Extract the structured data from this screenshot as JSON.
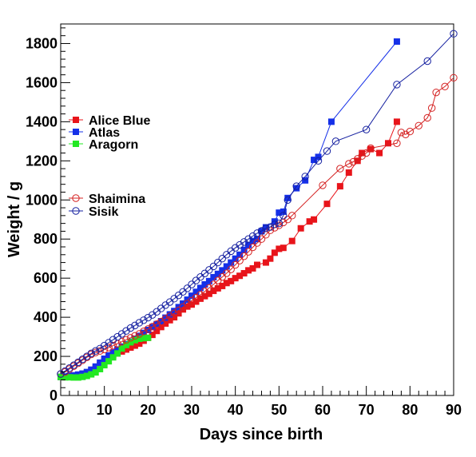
{
  "chart_data": {
    "type": "scatter",
    "title": "",
    "xlabel": "Days since birth",
    "ylabel": "Weight / g",
    "xlim": [
      0,
      90
    ],
    "ylim": [
      0,
      1900
    ],
    "x_ticks": [
      0,
      10,
      20,
      30,
      40,
      50,
      60,
      70,
      80,
      90
    ],
    "y_ticks": [
      0,
      200,
      400,
      600,
      800,
      1000,
      1200,
      1400,
      1600,
      1800
    ],
    "x_tick_labels": [
      "0",
      "10",
      "20",
      "30",
      "40",
      "50",
      "60",
      "70",
      "80",
      "90"
    ],
    "y_tick_labels": [
      "0",
      "200",
      "400",
      "600",
      "800",
      "1000",
      "1200",
      "1400",
      "1600",
      "1800"
    ],
    "grid": false,
    "legend_position": "left",
    "series": [
      {
        "name": "Alice Blue",
        "color": "#e8141a",
        "marker": "filled-square",
        "connected": true,
        "points": [
          [
            0,
            95
          ],
          [
            1,
            95
          ],
          [
            2,
            97
          ],
          [
            3,
            100
          ],
          [
            4,
            104
          ],
          [
            5,
            108
          ],
          [
            6,
            115
          ],
          [
            7,
            125
          ],
          [
            8,
            140
          ],
          [
            9,
            158
          ],
          [
            10,
            178
          ],
          [
            11,
            195
          ],
          [
            12,
            205
          ],
          [
            13,
            215
          ],
          [
            14,
            225
          ],
          [
            15,
            235
          ],
          [
            16,
            245
          ],
          [
            17,
            255
          ],
          [
            18,
            265
          ],
          [
            19,
            280
          ],
          [
            20,
            295
          ],
          [
            21,
            310
          ],
          [
            22,
            330
          ],
          [
            23,
            350
          ],
          [
            24,
            368
          ],
          [
            25,
            385
          ],
          [
            26,
            400
          ],
          [
            27,
            420
          ],
          [
            28,
            440
          ],
          [
            29,
            455
          ],
          [
            30,
            465
          ],
          [
            31,
            480
          ],
          [
            32,
            495
          ],
          [
            33,
            508
          ],
          [
            34,
            520
          ],
          [
            35,
            535
          ],
          [
            36,
            548
          ],
          [
            37,
            560
          ],
          [
            38,
            575
          ],
          [
            39,
            585
          ],
          [
            40,
            600
          ],
          [
            41,
            612
          ],
          [
            42,
            625
          ],
          [
            43,
            640
          ],
          [
            44,
            650
          ],
          [
            45,
            668
          ],
          [
            47,
            680
          ],
          [
            48,
            700
          ],
          [
            49,
            730
          ],
          [
            50,
            750
          ],
          [
            51,
            755
          ],
          [
            53,
            790
          ],
          [
            55,
            855
          ],
          [
            57,
            890
          ],
          [
            58,
            900
          ],
          [
            61,
            980
          ],
          [
            64,
            1070
          ],
          [
            66,
            1140
          ],
          [
            68,
            1200
          ],
          [
            69,
            1240
          ],
          [
            71,
            1260
          ],
          [
            73,
            1240
          ],
          [
            75,
            1290
          ],
          [
            77,
            1400
          ]
        ]
      },
      {
        "name": "Atlas",
        "color": "#1530e8",
        "marker": "filled-square",
        "connected": true,
        "points": [
          [
            0,
            95
          ],
          [
            1,
            97
          ],
          [
            2,
            100
          ],
          [
            3,
            103
          ],
          [
            4,
            107
          ],
          [
            5,
            112
          ],
          [
            6,
            120
          ],
          [
            7,
            132
          ],
          [
            8,
            148
          ],
          [
            9,
            168
          ],
          [
            10,
            188
          ],
          [
            11,
            205
          ],
          [
            12,
            220
          ],
          [
            13,
            235
          ],
          [
            14,
            250
          ],
          [
            15,
            262
          ],
          [
            16,
            275
          ],
          [
            17,
            290
          ],
          [
            18,
            305
          ],
          [
            19,
            320
          ],
          [
            20,
            335
          ],
          [
            21,
            350
          ],
          [
            22,
            365
          ],
          [
            23,
            380
          ],
          [
            24,
            398
          ],
          [
            25,
            415
          ],
          [
            26,
            432
          ],
          [
            27,
            452
          ],
          [
            28,
            470
          ],
          [
            29,
            490
          ],
          [
            30,
            510
          ],
          [
            31,
            530
          ],
          [
            32,
            550
          ],
          [
            33,
            568
          ],
          [
            34,
            585
          ],
          [
            35,
            605
          ],
          [
            36,
            622
          ],
          [
            37,
            640
          ],
          [
            38,
            660
          ],
          [
            39,
            680
          ],
          [
            40,
            700
          ],
          [
            41,
            720
          ],
          [
            42,
            745
          ],
          [
            43,
            770
          ],
          [
            44,
            790
          ],
          [
            45,
            800
          ],
          [
            46,
            840
          ],
          [
            47,
            860
          ],
          [
            49,
            890
          ],
          [
            50,
            935
          ],
          [
            51,
            940
          ],
          [
            52,
            1010
          ],
          [
            54,
            1060
          ],
          [
            56,
            1100
          ],
          [
            58,
            1205
          ],
          [
            59,
            1220
          ],
          [
            62,
            1400
          ],
          [
            77,
            1810
          ]
        ]
      },
      {
        "name": "Aragorn",
        "color": "#22e822",
        "marker": "filled-square",
        "connected": true,
        "points": [
          [
            0,
            95
          ],
          [
            1,
            93
          ],
          [
            2,
            93
          ],
          [
            3,
            92
          ],
          [
            4,
            92
          ],
          [
            5,
            95
          ],
          [
            6,
            100
          ],
          [
            7,
            108
          ],
          [
            8,
            118
          ],
          [
            9,
            135
          ],
          [
            10,
            155
          ],
          [
            11,
            175
          ],
          [
            12,
            195
          ],
          [
            13,
            215
          ],
          [
            14,
            240
          ],
          [
            15,
            258
          ],
          [
            16,
            272
          ],
          [
            17,
            283
          ],
          [
            18,
            290
          ],
          [
            19,
            293
          ],
          [
            20,
            295
          ]
        ]
      },
      {
        "name": "Shaimina",
        "color": "#d42020",
        "marker": "open-circle",
        "connected": true,
        "points": [
          [
            0,
            110
          ],
          [
            1,
            120
          ],
          [
            2,
            135
          ],
          [
            3,
            150
          ],
          [
            4,
            165
          ],
          [
            5,
            180
          ],
          [
            6,
            195
          ],
          [
            7,
            210
          ],
          [
            8,
            220
          ],
          [
            9,
            228
          ],
          [
            10,
            235
          ],
          [
            11,
            245
          ],
          [
            12,
            255
          ],
          [
            13,
            265
          ],
          [
            14,
            275
          ],
          [
            15,
            285
          ],
          [
            16,
            295
          ],
          [
            17,
            305
          ],
          [
            18,
            315
          ],
          [
            19,
            328
          ],
          [
            20,
            340
          ],
          [
            21,
            352
          ],
          [
            22,
            365
          ],
          [
            23,
            378
          ],
          [
            24,
            392
          ],
          [
            25,
            405
          ],
          [
            26,
            420
          ],
          [
            27,
            435
          ],
          [
            28,
            452
          ],
          [
            29,
            470
          ],
          [
            30,
            485
          ],
          [
            31,
            500
          ],
          [
            32,
            515
          ],
          [
            33,
            532
          ],
          [
            34,
            550
          ],
          [
            35,
            568
          ],
          [
            36,
            588
          ],
          [
            37,
            606
          ],
          [
            38,
            625
          ],
          [
            39,
            645
          ],
          [
            40,
            668
          ],
          [
            41,
            690
          ],
          [
            42,
            712
          ],
          [
            43,
            735
          ],
          [
            44,
            758
          ],
          [
            45,
            780
          ],
          [
            46,
            800
          ],
          [
            47,
            822
          ],
          [
            48,
            845
          ],
          [
            49,
            858
          ],
          [
            50,
            870
          ],
          [
            51,
            885
          ],
          [
            52,
            900
          ],
          [
            53,
            920
          ],
          [
            60,
            1075
          ],
          [
            64,
            1160
          ],
          [
            66,
            1185
          ],
          [
            67,
            1195
          ],
          [
            68,
            1210
          ],
          [
            69,
            1225
          ],
          [
            70,
            1240
          ],
          [
            71,
            1265
          ],
          [
            77,
            1290
          ],
          [
            78,
            1345
          ],
          [
            79,
            1335
          ],
          [
            80,
            1350
          ],
          [
            82,
            1380
          ],
          [
            84,
            1420
          ],
          [
            85,
            1470
          ],
          [
            86,
            1550
          ],
          [
            88,
            1580
          ],
          [
            90,
            1625
          ]
        ]
      },
      {
        "name": "Sisik",
        "color": "#1520a0",
        "marker": "open-circle",
        "connected": true,
        "points": [
          [
            0,
            110
          ],
          [
            1,
            125
          ],
          [
            2,
            140
          ],
          [
            3,
            155
          ],
          [
            4,
            170
          ],
          [
            5,
            185
          ],
          [
            6,
            200
          ],
          [
            7,
            215
          ],
          [
            8,
            228
          ],
          [
            9,
            240
          ],
          [
            10,
            255
          ],
          [
            11,
            270
          ],
          [
            12,
            285
          ],
          [
            13,
            300
          ],
          [
            14,
            315
          ],
          [
            15,
            330
          ],
          [
            16,
            345
          ],
          [
            17,
            358
          ],
          [
            18,
            372
          ],
          [
            19,
            385
          ],
          [
            20,
            398
          ],
          [
            21,
            412
          ],
          [
            22,
            428
          ],
          [
            23,
            445
          ],
          [
            24,
            462
          ],
          [
            25,
            478
          ],
          [
            26,
            495
          ],
          [
            27,
            512
          ],
          [
            28,
            530
          ],
          [
            29,
            548
          ],
          [
            30,
            568
          ],
          [
            31,
            588
          ],
          [
            32,
            606
          ],
          [
            33,
            624
          ],
          [
            34,
            642
          ],
          [
            35,
            660
          ],
          [
            36,
            680
          ],
          [
            37,
            700
          ],
          [
            38,
            720
          ],
          [
            39,
            738
          ],
          [
            40,
            755
          ],
          [
            41,
            770
          ],
          [
            42,
            785
          ],
          [
            43,
            800
          ],
          [
            44,
            815
          ],
          [
            45,
            830
          ],
          [
            46,
            842
          ],
          [
            47,
            855
          ],
          [
            48,
            862
          ],
          [
            49,
            875
          ],
          [
            50,
            880
          ],
          [
            51,
            920
          ],
          [
            52,
            1000
          ],
          [
            54,
            1070
          ],
          [
            56,
            1120
          ],
          [
            59,
            1200
          ],
          [
            61,
            1250
          ],
          [
            63,
            1300
          ],
          [
            70,
            1360
          ],
          [
            77,
            1590
          ],
          [
            84,
            1710
          ],
          [
            90,
            1850
          ]
        ]
      }
    ]
  }
}
